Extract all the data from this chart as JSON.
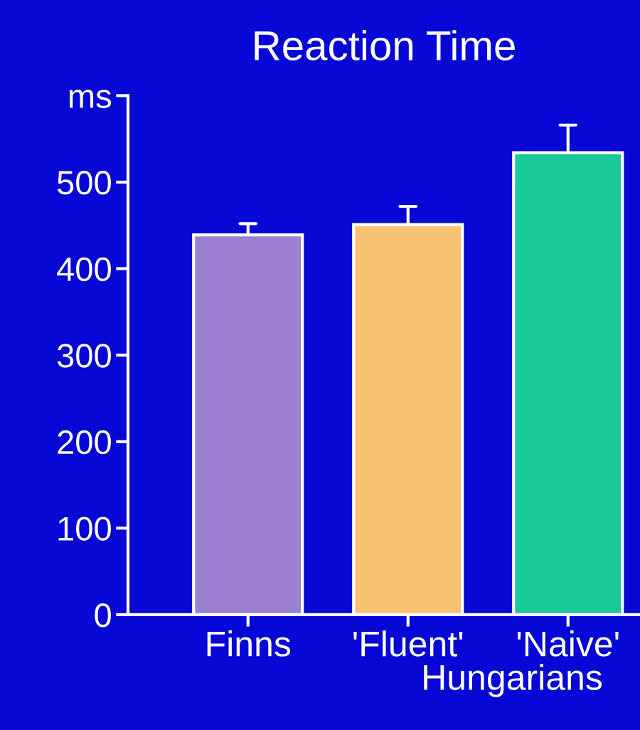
{
  "chart_data": {
    "type": "bar",
    "title": "Reaction Time",
    "xlabel": "Hungarians",
    "categories": [
      "Finns",
      "'Fluent'",
      "'Naive'"
    ],
    "values": [
      439,
      451,
      534
    ],
    "colors": [
      "#9b80d2",
      "#f8c272",
      "#1ac99a"
    ],
    "errors": [
      [
        439,
        452
      ],
      [
        451,
        472
      ],
      [
        534,
        566
      ]
    ],
    "ylim": [
      0,
      600
    ],
    "yticks": [
      0,
      100,
      200,
      300,
      400,
      500,
      {
        "value": 600,
        "label": "ms"
      }
    ],
    "grid": false,
    "legend": false
  }
}
